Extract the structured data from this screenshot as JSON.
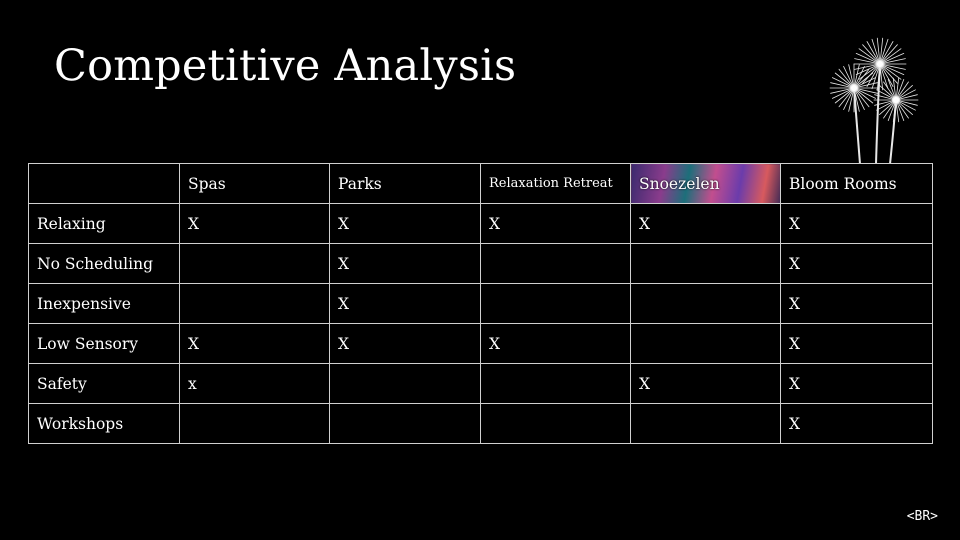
{
  "title": "Competitive Analysis",
  "table": {
    "header": [
      "",
      "Spas",
      "Parks",
      "Relaxation Retreat",
      "Snoezelen",
      "Bloom Rooms"
    ],
    "rows": [
      [
        "Relaxing",
        "X",
        "X",
        "X",
        "X",
        "X"
      ],
      [
        "No Scheduling",
        "",
        "X",
        "",
        "",
        "X"
      ],
      [
        "Inexpensive",
        "",
        "X",
        "",
        "",
        "X"
      ],
      [
        "Low Sensory",
        "X",
        "X",
        "X",
        "",
        "X"
      ],
      [
        "Safety",
        "x",
        "",
        "",
        "X",
        "X"
      ],
      [
        "Workshops",
        "",
        "",
        "",
        "",
        "X"
      ]
    ]
  },
  "logo_text": "<BR>",
  "colors": {
    "background": "#000000",
    "text": "#ffffff",
    "grid": "#d0d0d0"
  },
  "icons": {
    "decoration": "dandelion-flowers-icon"
  }
}
